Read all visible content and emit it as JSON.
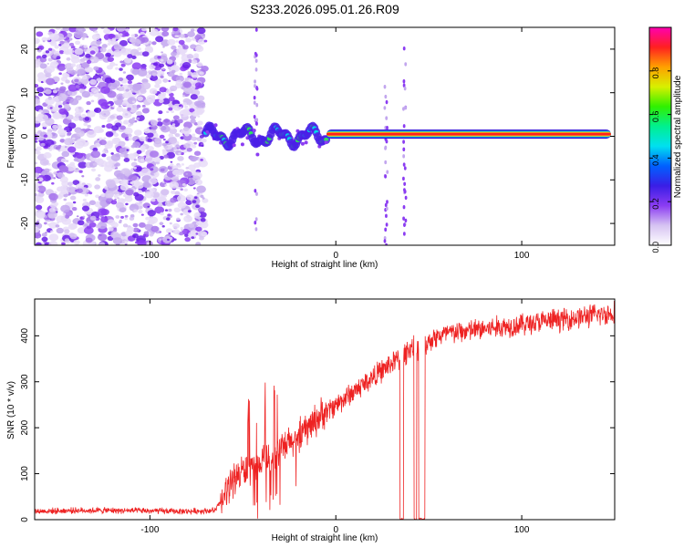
{
  "title": "S233.2026.095.01.26.R09",
  "chart_data": [
    {
      "type": "heatmap",
      "id": "spectrogram",
      "xlabel": "Height of straight line (km)",
      "ylabel": "Frequency (Hz)",
      "xlim": [
        -162,
        150
      ],
      "ylim": [
        -25,
        25
      ],
      "xticks": [
        -100,
        0,
        100
      ],
      "xtick_labels": [
        "-100",
        "0",
        "100"
      ],
      "yticks": [
        -20,
        -10,
        0,
        10,
        20
      ],
      "ytick_labels": [
        "-20",
        "-10",
        "0",
        "10",
        "20"
      ],
      "noise_region_x": [
        -162,
        -70
      ],
      "transition_region_x": [
        -70,
        -5
      ],
      "carrier_line": {
        "x_start": -5,
        "x_end": 148,
        "frequency": 0.5
      },
      "vertical_streaks_x": [
        -43,
        27,
        37
      ],
      "colorbar": {
        "label": "Normalized spectral amplitude",
        "range": [
          0,
          1
        ],
        "ticks": [
          0.0,
          0.2,
          0.4,
          0.6,
          0.8
        ],
        "tick_labels": [
          "0.0",
          "0.2",
          "0.4",
          "0.6",
          "0.8"
        ],
        "colors": [
          "#ffffff",
          "#d6c3f2",
          "#8b3cf2",
          "#3a1ee6",
          "#0060ff",
          "#00e0f0",
          "#00f090",
          "#30f000",
          "#d8f000",
          "#ffa000",
          "#ff2020",
          "#ff00b0"
        ]
      }
    },
    {
      "type": "line",
      "id": "snr",
      "xlabel": "Height of straight line (km)",
      "ylabel": "SNR (10 * v/v)",
      "xlim": [
        -162,
        150
      ],
      "ylim": [
        0,
        480
      ],
      "xticks": [
        -100,
        0,
        100
      ],
      "xtick_labels": [
        "-100",
        "0",
        "100"
      ],
      "yticks": [
        0,
        100,
        200,
        300,
        400
      ],
      "ytick_labels": [
        "0",
        "100",
        "200",
        "300",
        "400"
      ],
      "color": "#ee2222",
      "x": [
        -162,
        -140,
        -120,
        -100,
        -80,
        -65,
        -60,
        -55,
        -50,
        -40,
        -30,
        -20,
        -10,
        0,
        10,
        20,
        30,
        34,
        36,
        37,
        40,
        44,
        46,
        48,
        52,
        60,
        70,
        80,
        90,
        100,
        110,
        120,
        130,
        140,
        150
      ],
      "y": [
        18,
        20,
        20,
        19,
        18,
        20,
        50,
        90,
        105,
        125,
        150,
        180,
        220,
        250,
        280,
        310,
        340,
        350,
        360,
        360,
        375,
        372,
        374,
        380,
        395,
        405,
        410,
        415,
        420,
        425,
        430,
        435,
        440,
        445,
        450
      ],
      "dropouts_x": [
        [
          34.5,
          36.5
        ],
        [
          42,
          43.5
        ],
        [
          44.5,
          48
        ]
      ]
    }
  ]
}
